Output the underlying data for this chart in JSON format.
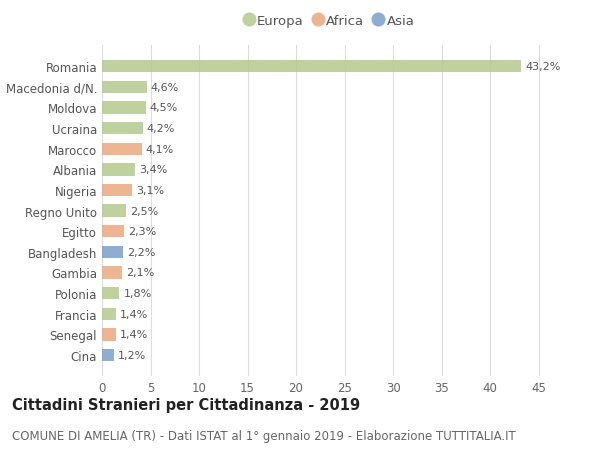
{
  "countries": [
    "Romania",
    "Macedonia d/N.",
    "Moldova",
    "Ucraina",
    "Marocco",
    "Albania",
    "Nigeria",
    "Regno Unito",
    "Egitto",
    "Bangladesh",
    "Gambia",
    "Polonia",
    "Francia",
    "Senegal",
    "Cina"
  ],
  "values": [
    43.2,
    4.6,
    4.5,
    4.2,
    4.1,
    3.4,
    3.1,
    2.5,
    2.3,
    2.2,
    2.1,
    1.8,
    1.4,
    1.4,
    1.2
  ],
  "labels": [
    "43,2%",
    "4,6%",
    "4,5%",
    "4,2%",
    "4,1%",
    "3,4%",
    "3,1%",
    "2,5%",
    "2,3%",
    "2,2%",
    "2,1%",
    "1,8%",
    "1,4%",
    "1,4%",
    "1,2%"
  ],
  "continent": [
    "Europa",
    "Europa",
    "Europa",
    "Europa",
    "Africa",
    "Europa",
    "Africa",
    "Europa",
    "Africa",
    "Asia",
    "Africa",
    "Europa",
    "Europa",
    "Africa",
    "Asia"
  ],
  "bar_colors": [
    "#b5c98e",
    "#b5c98e",
    "#b5c98e",
    "#b5c98e",
    "#e8a97e",
    "#b5c98e",
    "#e8a97e",
    "#b5c98e",
    "#e8a97e",
    "#7b9ec9",
    "#e8a97e",
    "#b5c98e",
    "#b5c98e",
    "#e8a97e",
    "#7b9ec9"
  ],
  "xlim": [
    0,
    47
  ],
  "xticks": [
    0,
    5,
    10,
    15,
    20,
    25,
    30,
    35,
    40,
    45
  ],
  "title": "Cittadini Stranieri per Cittadinanza - 2019",
  "subtitle": "COMUNE DI AMELIA (TR) - Dati ISTAT al 1° gennaio 2019 - Elaborazione TUTTITALIA.IT",
  "legend_labels": [
    "Europa",
    "Africa",
    "Asia"
  ],
  "legend_colors": [
    "#b5c98e",
    "#e8a97e",
    "#7b9ec9"
  ],
  "bg_color": "#ffffff",
  "grid_color": "#dddddd",
  "title_fontsize": 10.5,
  "subtitle_fontsize": 8.5,
  "label_fontsize": 8,
  "tick_fontsize": 8.5,
  "legend_fontsize": 9.5
}
